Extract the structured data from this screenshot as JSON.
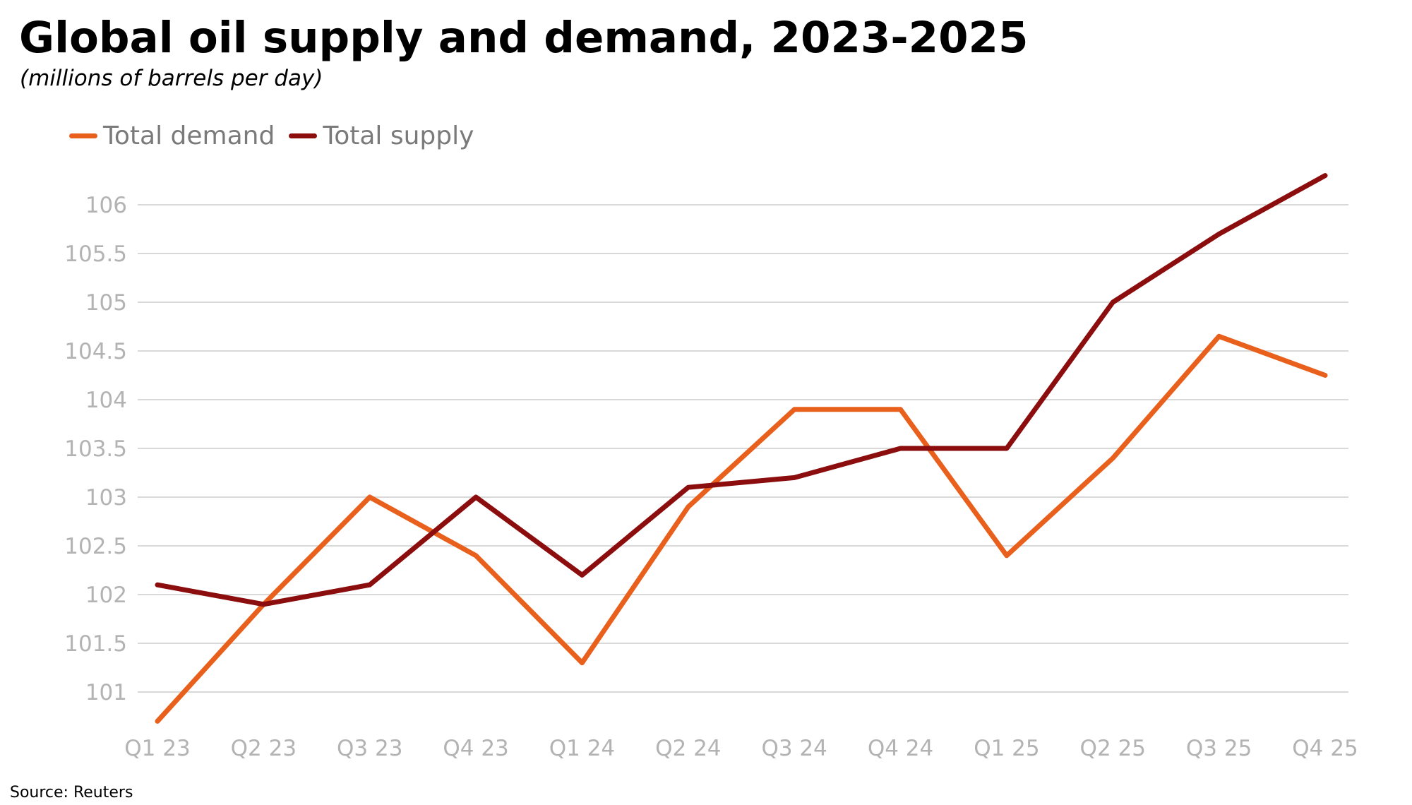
{
  "chart_data": {
    "type": "line",
    "title": "Global oil supply and demand, 2023-2025",
    "subtitle": "(millions of barrels per day)",
    "source": "Source: Reuters",
    "categories": [
      "Q1 23",
      "Q2 23",
      "Q3 23",
      "Q4 23",
      "Q1 24",
      "Q2 24",
      "Q3 24",
      "Q4 24",
      "Q1 25",
      "Q2 25",
      "Q3 25",
      "Q4 25"
    ],
    "series": [
      {
        "name": "Total demand",
        "color": "#e8601c",
        "values": [
          100.7,
          101.9,
          103.0,
          102.4,
          101.3,
          102.9,
          103.9,
          103.9,
          102.4,
          103.4,
          104.65,
          104.25
        ]
      },
      {
        "name": "Total supply",
        "color": "#8b0d0d",
        "values": [
          102.1,
          101.9,
          102.1,
          103.0,
          102.2,
          103.1,
          103.2,
          103.5,
          103.5,
          105.0,
          105.7,
          106.3
        ]
      }
    ],
    "yticks": [
      "101",
      "101.5",
      "102",
      "102.5",
      "103",
      "103.5",
      "104",
      "104.5",
      "105",
      "105.5",
      "106"
    ],
    "ylim": [
      100.7,
      106.3
    ],
    "grid": true,
    "legend_position": "top-left",
    "xlabel": "",
    "ylabel": ""
  }
}
